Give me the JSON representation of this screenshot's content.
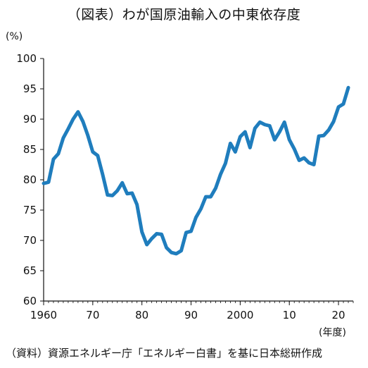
{
  "title": "（図表）わが国原油輸入の中東依存度",
  "unit_label": "(%)",
  "x_unit_label": "(年度)",
  "source": "（資料）資源エネルギー庁「エネルギー白書」を基に日本総研作成",
  "colors": {
    "line": "#1f7dbd",
    "axis": "#111111"
  },
  "chart_data": {
    "type": "line",
    "title": "（図表）わが国原油輸入の中東依存度",
    "xlabel": "(年度)",
    "ylabel": "(%)",
    "ylim": [
      60,
      100
    ],
    "xlim": [
      1960,
      2023
    ],
    "y_ticks": [
      60,
      65,
      70,
      75,
      80,
      85,
      90,
      95,
      100
    ],
    "x_ticks": [
      1960,
      1970,
      1980,
      1990,
      2000,
      2010,
      2020
    ],
    "x_tick_labels": [
      "1960",
      "70",
      "80",
      "90",
      "2000",
      "10",
      "20"
    ],
    "grid": false,
    "series": [
      {
        "x": [
          1960,
          1961,
          1962,
          1963,
          1964,
          1965,
          1966,
          1967,
          1968,
          1969,
          1970,
          1971,
          1972,
          1973,
          1974,
          1975,
          1976,
          1977,
          1978,
          1979,
          1980,
          1981,
          1982,
          1983,
          1984,
          1985,
          1986,
          1987,
          1988,
          1989,
          1990,
          1991,
          1992,
          1993,
          1994,
          1995,
          1996,
          1997,
          1998,
          1999,
          2000,
          2001,
          2002,
          2003,
          2004,
          2005,
          2006,
          2007,
          2008,
          2009,
          2010,
          2011,
          2012,
          2013,
          2014,
          2015,
          2016,
          2017,
          2018,
          2019,
          2020,
          2021,
          2022
        ],
        "values": [
          79.4,
          79.6,
          83.4,
          84.3,
          86.9,
          88.4,
          90.0,
          91.2,
          89.6,
          87.3,
          84.6,
          84.0,
          80.9,
          77.5,
          77.4,
          78.2,
          79.5,
          77.7,
          77.8,
          75.9,
          71.4,
          69.3,
          70.3,
          71.1,
          71.0,
          68.8,
          68.0,
          67.8,
          68.3,
          71.3,
          71.5,
          73.8,
          75.2,
          77.2,
          77.2,
          78.6,
          80.9,
          82.7,
          86.0,
          84.6,
          87.1,
          87.9,
          85.3,
          88.5,
          89.5,
          89.1,
          88.9,
          86.6,
          87.9,
          89.5,
          86.6,
          85.1,
          83.2,
          83.6,
          82.8,
          82.5,
          87.2,
          87.3,
          88.2,
          89.6,
          92.0,
          92.5,
          95.2
        ]
      }
    ]
  }
}
